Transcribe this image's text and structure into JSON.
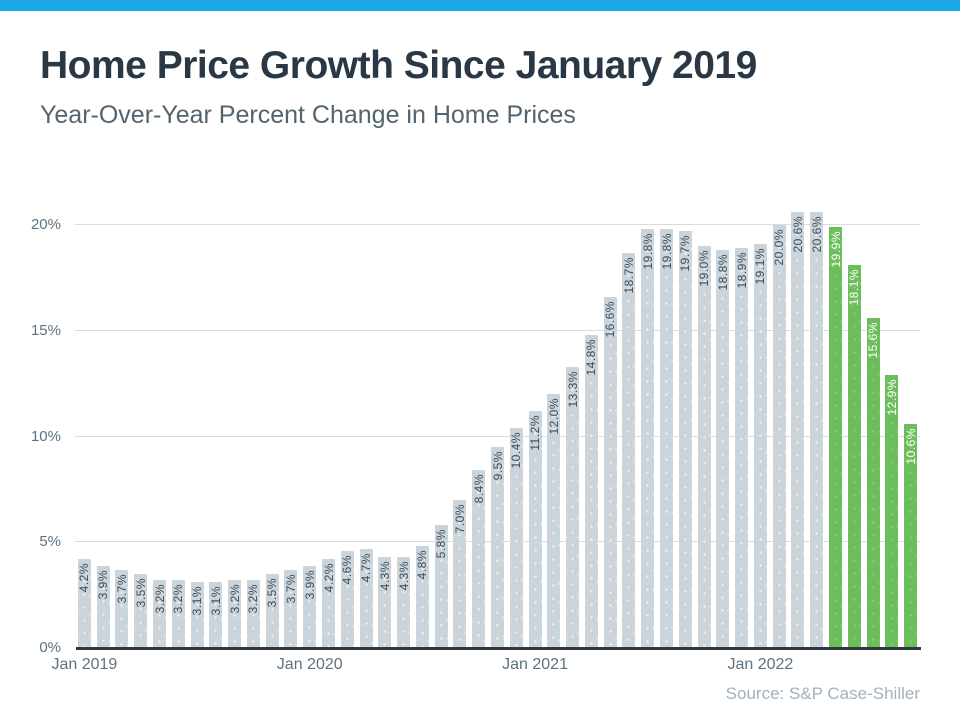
{
  "header": {
    "title": "Home Price Growth Since January 2019",
    "subtitle": "Year-Over-Year Percent Change in Home Prices"
  },
  "source": "Source: S&P Case-Shiller",
  "colors": {
    "top_bar": "#18a8e8",
    "title": "#2a3744",
    "subtitle": "#53646f",
    "bar": "#cbd4da",
    "bar_highlight": "#6cbe5a",
    "bar_label": "#3c4c58",
    "bar_label_highlight": "#ffffff",
    "axis_text": "#5d7280",
    "gridline": "#d9dde0",
    "baseline": "#2d3a44",
    "source_text": "#a0b2bf"
  },
  "chart_data": {
    "type": "bar",
    "title": "Home Price Growth Since January 2019",
    "subtitle": "Year-Over-Year Percent Change in Home Prices",
    "xlabel": "",
    "ylabel": "",
    "ylim": [
      0,
      20
    ],
    "grid": true,
    "legend": false,
    "value_suffix": "%",
    "values": [
      4.2,
      3.9,
      3.7,
      3.5,
      3.2,
      3.2,
      3.1,
      3.1,
      3.2,
      3.2,
      3.5,
      3.7,
      3.9,
      4.2,
      4.6,
      4.7,
      4.3,
      4.3,
      4.8,
      5.8,
      7.0,
      8.4,
      9.5,
      10.4,
      11.2,
      12.0,
      13.3,
      14.8,
      16.6,
      18.7,
      19.8,
      19.8,
      19.7,
      19.0,
      18.8,
      18.9,
      19.1,
      20.0,
      20.6,
      20.6,
      19.9,
      18.1,
      15.6,
      12.9,
      10.6
    ],
    "highlight_start_index": 40,
    "x_ticks": [
      {
        "index": 0,
        "label": "Jan 2019"
      },
      {
        "index": 12,
        "label": "Jan 2020"
      },
      {
        "index": 24,
        "label": "Jan 2021"
      },
      {
        "index": 36,
        "label": "Jan 2022"
      }
    ],
    "y_ticks": [
      {
        "value": 0,
        "label": "0%"
      },
      {
        "value": 5,
        "label": "5%"
      },
      {
        "value": 10,
        "label": "10%"
      },
      {
        "value": 15,
        "label": "15%"
      },
      {
        "value": 20,
        "label": "20%"
      }
    ]
  }
}
